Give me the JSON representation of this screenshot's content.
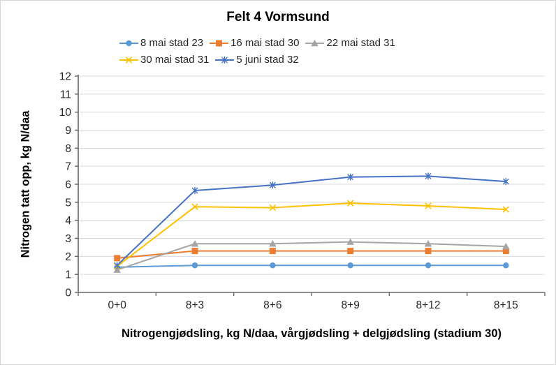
{
  "chart_data": {
    "type": "line",
    "title": "Felt 4 Vormsund",
    "xlabel": "Nitrogengjødsling, kg N/daa, vårgjødsling + delgjødsling (stadium 30)",
    "ylabel": "Nitrogen tatt opp, kg N/daa",
    "ylim": [
      0,
      12
    ],
    "ytick_step": 1,
    "grid": "horizontal-only",
    "legend_position": "top",
    "legend_rows": [
      [
        0,
        1,
        2
      ],
      [
        3,
        4
      ]
    ],
    "categories": [
      "0+0",
      "8+3",
      "8+6",
      "8+9",
      "8+12",
      "8+15"
    ],
    "series": [
      {
        "name": "8 mai stad 23",
        "color": "#5B9BD5",
        "marker": "circle",
        "values": [
          1.4,
          1.5,
          1.5,
          1.5,
          1.5,
          1.5
        ]
      },
      {
        "name": "16 mai stad 30",
        "color": "#ED7D31",
        "marker": "square",
        "values": [
          1.9,
          2.3,
          2.3,
          2.3,
          2.3,
          2.3
        ]
      },
      {
        "name": "22 mai stad 31",
        "color": "#A5A5A5",
        "marker": "triangle",
        "values": [
          1.25,
          2.7,
          2.7,
          2.8,
          2.7,
          2.55
        ]
      },
      {
        "name": "30 mai stad 31",
        "color": "#FFC000",
        "marker": "x",
        "values": [
          1.45,
          4.75,
          4.7,
          4.95,
          4.8,
          4.6
        ]
      },
      {
        "name": "5 juni stad 32",
        "color": "#4472C4",
        "marker": "asterisk",
        "values": [
          1.5,
          5.65,
          5.95,
          6.4,
          6.45,
          6.15
        ]
      }
    ],
    "colors": {
      "gridline": "#D9D9D9",
      "axis": "#666666",
      "tick_label": "#262626",
      "background": "#FFFFFF"
    }
  }
}
